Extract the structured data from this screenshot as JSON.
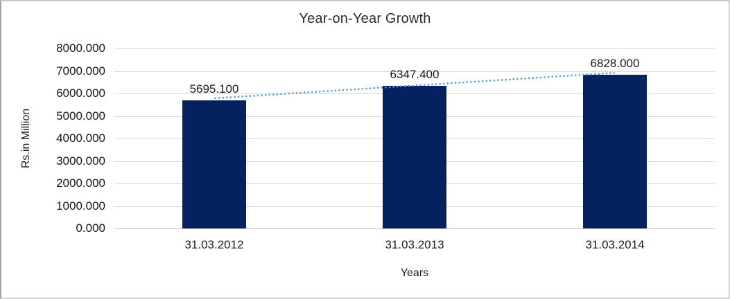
{
  "chart_data": {
    "type": "bar",
    "title": "Year-on-Year Growth",
    "xlabel": "Years",
    "ylabel": "Rs.in Million",
    "categories": [
      "31.03.2012",
      "31.03.2013",
      "31.03.2014"
    ],
    "values": [
      5695.1,
      6347.4,
      6828.0
    ],
    "data_labels": [
      "5695.100",
      "6347.400",
      "6828.000"
    ],
    "ylim": [
      0,
      8000
    ],
    "ytick_step": 1000,
    "ytick_labels": [
      "0.000",
      "1000.000",
      "2000.000",
      "3000.000",
      "4000.000",
      "5000.000",
      "6000.000",
      "7000.000",
      "8000.000"
    ],
    "grid": "horizontal",
    "legend_position": "none",
    "trendline": {
      "type": "linear",
      "style": "dotted",
      "color": "#5b9bd5"
    },
    "colors": {
      "bar": "#062160",
      "gridline": "#d9d9d9",
      "baseline": "#c6c6c6",
      "text": "#1a1a1a"
    }
  }
}
